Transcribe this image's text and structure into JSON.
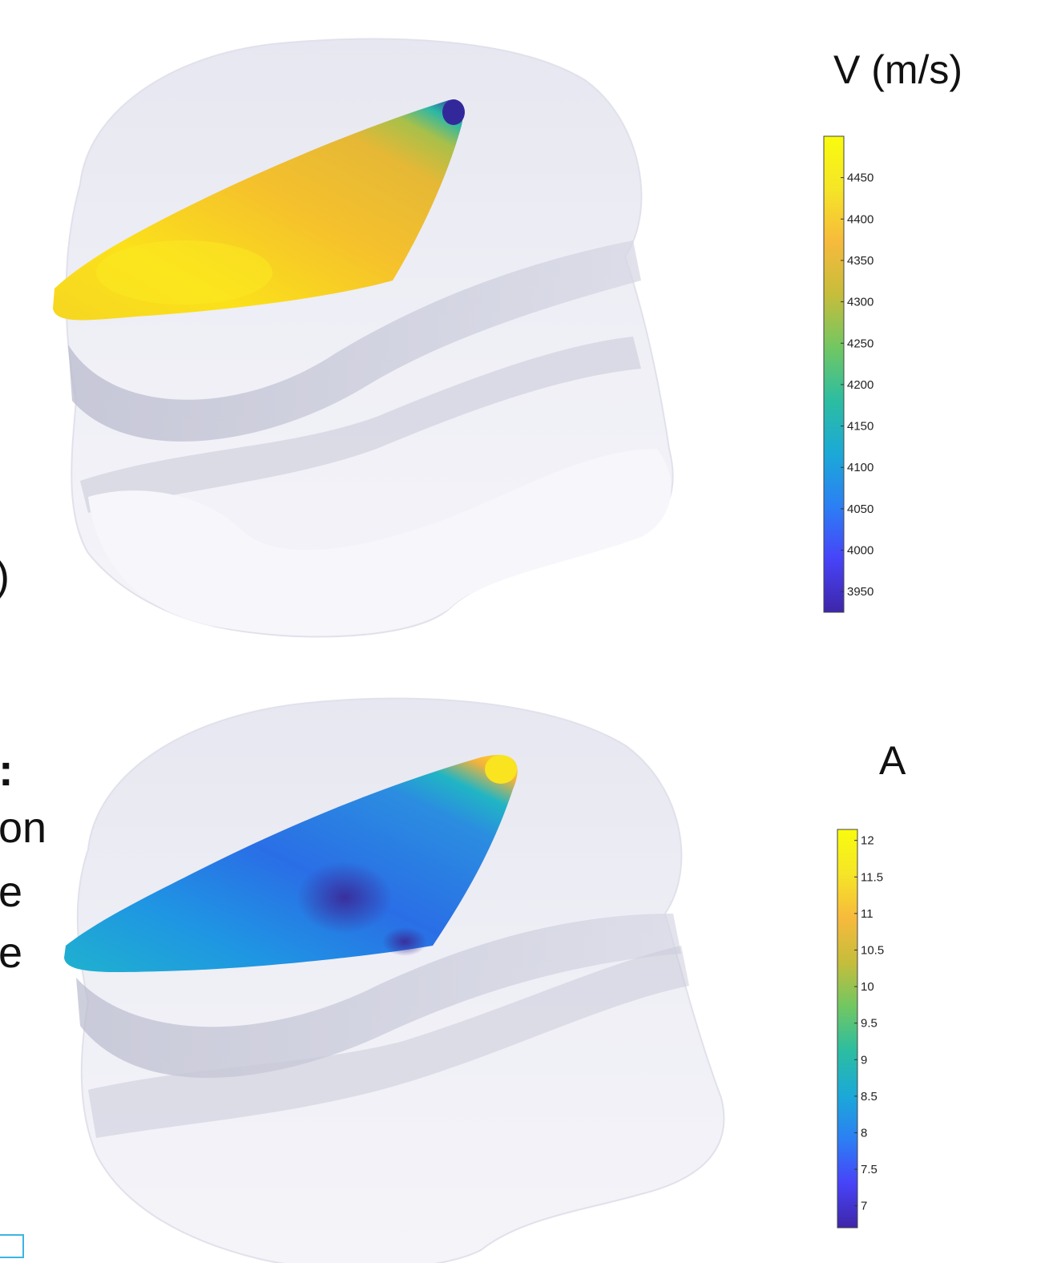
{
  "panels": [
    {
      "title": "V (m/s)",
      "colorbar": {
        "min": 3925,
        "max": 4500,
        "ticks": [
          "3950",
          "4000",
          "4050",
          "4100",
          "4150",
          "4200",
          "4250",
          "4300",
          "4350",
          "4400",
          "4450"
        ]
      }
    },
    {
      "title": "A",
      "colorbar": {
        "min": 6.7,
        "max": 12.15,
        "ticks": [
          "7",
          "7.5",
          "8",
          "8.5",
          "9",
          "9.5",
          "10",
          "10.5",
          "11",
          "11.5",
          "12"
        ]
      }
    }
  ],
  "cropped_text": [
    ")",
    ":",
    "on",
    "e",
    "e"
  ],
  "colormap": [
    "#3e26a8",
    "#4743f8",
    "#2c7ff4",
    "#1ba9d7",
    "#2cbda1",
    "#71c762",
    "#c6bd3b",
    "#f7ba3c",
    "#f5e527",
    "#f9fb0e"
  ]
}
